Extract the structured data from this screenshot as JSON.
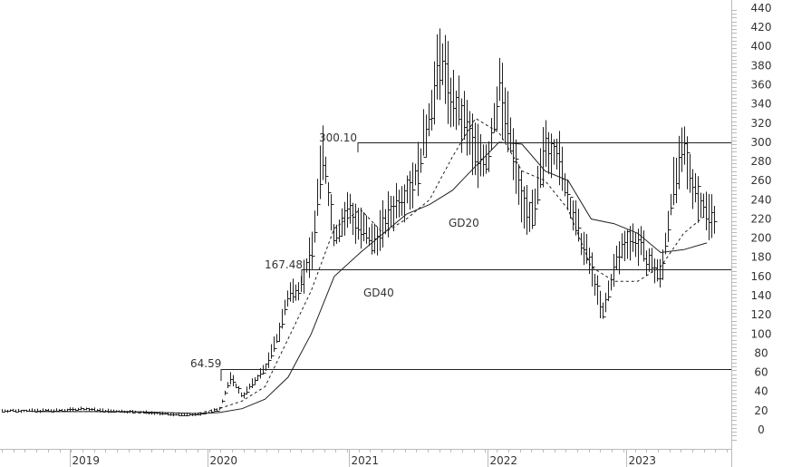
{
  "chart_data": {
    "type": "bar",
    "subtype": "ohlc-weekly-price-chart",
    "title": "",
    "xlabel": "",
    "ylabel": "",
    "ylim": [
      0,
      440
    ],
    "y_ticks": [
      0,
      20,
      40,
      60,
      80,
      100,
      120,
      140,
      160,
      180,
      200,
      220,
      240,
      260,
      280,
      300,
      320,
      340,
      360,
      380,
      400,
      420,
      440
    ],
    "x_ticks": [
      "2019",
      "2020",
      "2021",
      "2022",
      "2023"
    ],
    "grid": false,
    "legend": "none",
    "horizontal_levels": [
      {
        "label": "300.10",
        "value": 300.1,
        "start": "2020-11"
      },
      {
        "label": "167.48",
        "value": 167.48,
        "start": "2020-07"
      },
      {
        "label": "64.59",
        "value": 64.59,
        "start": "2020-02"
      }
    ],
    "annotations": [
      {
        "text": "GD20",
        "desc": "20-period moving average (dashed)"
      },
      {
        "text": "GD40",
        "desc": "40-period moving average (solid)"
      }
    ],
    "series": [
      {
        "name": "Price (close, approx.)",
        "x": [
          "2018-10",
          "2018-12",
          "2019-02",
          "2019-04",
          "2019-06",
          "2019-08",
          "2019-10",
          "2019-12",
          "2020-01",
          "2020-02",
          "2020-03",
          "2020-04",
          "2020-05",
          "2020-06",
          "2020-07",
          "2020-08",
          "2020-09",
          "2020-10",
          "2020-11",
          "2020-12",
          "2021-01",
          "2021-02",
          "2021-03",
          "2021-04",
          "2021-05",
          "2021-06",
          "2021-07",
          "2021-08",
          "2021-09",
          "2021-10",
          "2021-11",
          "2021-12",
          "2022-01",
          "2022-02",
          "2022-03",
          "2022-04",
          "2022-05",
          "2022-06",
          "2022-07",
          "2022-08",
          "2022-09",
          "2022-10",
          "2022-11",
          "2022-12",
          "2023-01",
          "2023-02",
          "2023-03",
          "2023-04",
          "2023-05",
          "2023-06",
          "2023-07",
          "2023-08"
        ],
        "values": [
          20,
          20,
          22,
          20,
          19,
          18,
          16,
          16,
          18,
          22,
          55,
          35,
          50,
          65,
          95,
          140,
          150,
          185,
          290,
          200,
          230,
          210,
          195,
          215,
          235,
          250,
          270,
          330,
          390,
          340,
          320,
          290,
          280,
          360,
          300,
          240,
          220,
          300,
          290,
          240,
          200,
          170,
          120,
          170,
          200,
          195,
          175,
          160,
          250,
          290,
          250,
          225
        ]
      },
      {
        "name": "GD20",
        "x": [
          "2018-10",
          "2019-06",
          "2019-12",
          "2020-02",
          "2020-04",
          "2020-06",
          "2020-08",
          "2020-10",
          "2020-12",
          "2021-02",
          "2021-04",
          "2021-06",
          "2021-08",
          "2021-10",
          "2021-12",
          "2022-02",
          "2022-04",
          "2022-06",
          "2022-08",
          "2022-10",
          "2022-12",
          "2023-02",
          "2023-04",
          "2023-06",
          "2023-08"
        ],
        "values": [
          19,
          19,
          17,
          22,
          30,
          45,
          95,
          145,
          210,
          230,
          205,
          220,
          240,
          285,
          325,
          310,
          270,
          260,
          230,
          170,
          155,
          155,
          170,
          205,
          225
        ]
      },
      {
        "name": "GD40",
        "x": [
          "2018-10",
          "2019-06",
          "2019-12",
          "2020-02",
          "2020-04",
          "2020-06",
          "2020-08",
          "2020-10",
          "2020-12",
          "2021-02",
          "2021-04",
          "2021-06",
          "2021-08",
          "2021-10",
          "2021-12",
          "2022-02",
          "2022-04",
          "2022-06",
          "2022-08",
          "2022-10",
          "2022-12",
          "2023-02",
          "2023-04",
          "2023-06",
          "2023-08"
        ],
        "values": [
          19,
          19,
          17,
          18,
          22,
          32,
          55,
          100,
          160,
          185,
          205,
          225,
          235,
          250,
          275,
          300,
          298,
          270,
          260,
          220,
          215,
          205,
          185,
          188,
          195
        ]
      }
    ]
  },
  "axis": {
    "y_labels": [
      "440",
      "420",
      "400",
      "380",
      "360",
      "340",
      "320",
      "300",
      "280",
      "260",
      "240",
      "220",
      "200",
      "180",
      "160",
      "140",
      "120",
      "100",
      "80",
      "60",
      "40",
      "20",
      "0"
    ],
    "x_labels": [
      "2019",
      "2020",
      "2021",
      "2022",
      "2023"
    ]
  },
  "labels": {
    "level_300": "300.10",
    "level_167": "167.48",
    "level_64": "64.59",
    "gd20": "GD20",
    "gd40": "GD40"
  }
}
